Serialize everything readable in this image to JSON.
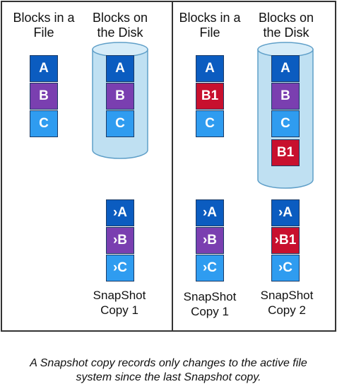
{
  "colors": {
    "A": "#0b5cc0",
    "B": "#7a3fb0",
    "C": "#2f9cf0",
    "B1": "#c8102e",
    "cylinder_fill": "#bfe0f2",
    "cylinder_edge": "#5f9fc8"
  },
  "left_panel": {
    "file_header": "Blocks in a File",
    "disk_header": "Blocks on the Disk",
    "file_blocks": [
      "A",
      "B",
      "C"
    ],
    "disk_blocks": [
      "A",
      "B",
      "C"
    ],
    "snapshot": {
      "blocks": [
        "›A",
        "›B",
        "›C"
      ],
      "label": "SnapShot Copy 1"
    }
  },
  "right_panel": {
    "file_header": "Blocks in a File",
    "disk_header": "Blocks on the Disk",
    "file_blocks": [
      "A",
      "B1",
      "C"
    ],
    "disk_blocks": [
      "A",
      "B",
      "C",
      "B1"
    ],
    "snapshot1": {
      "blocks": [
        "›A",
        "›B",
        "›C"
      ],
      "label": "SnapShot Copy 1"
    },
    "snapshot2": {
      "blocks": [
        "›A",
        "›B1",
        "›C"
      ],
      "label": "SnapShot Copy 2"
    }
  },
  "footnote": {
    "line1": "A Snapshot copy records only changes to the active file",
    "line2": "system since the last Snapshot copy."
  }
}
